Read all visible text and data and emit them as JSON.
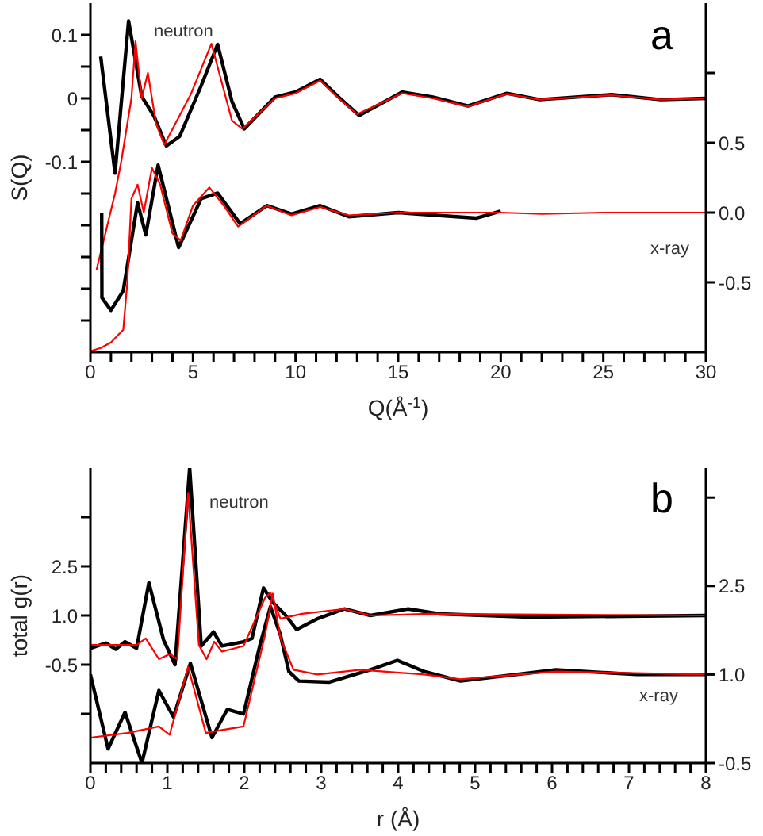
{
  "chart_data": [
    {
      "type": "line",
      "xlabel": "Q(Å$^{-1}$)",
      "ylabel": "S(Q)",
      "xlim": [
        0,
        30
      ],
      "ylim": [
        -0.4,
        0.15
      ],
      "y2lim": [
        -1,
        1.5
      ],
      "xticks": [
        0,
        {
          "value": 1,
          "label": null
        },
        {
          "value": 2,
          "label": null
        },
        {
          "value": 3,
          "label": null
        },
        {
          "value": 4,
          "label": null
        },
        5,
        {
          "value": 6,
          "label": null
        },
        {
          "value": 7,
          "label": null
        },
        {
          "value": 8,
          "label": null
        },
        {
          "value": 9,
          "label": null
        },
        10,
        {
          "value": 11,
          "label": null
        },
        {
          "value": 12,
          "label": null
        },
        {
          "value": 13,
          "label": null
        },
        {
          "value": 14,
          "label": null
        },
        15,
        {
          "value": 16,
          "label": null
        },
        {
          "value": 17,
          "label": null
        },
        {
          "value": 18,
          "label": null
        },
        {
          "value": 19,
          "label": null
        },
        20,
        {
          "value": 21,
          "label": null
        },
        {
          "value": 22,
          "label": null
        },
        {
          "value": 23,
          "label": null
        },
        {
          "value": 24,
          "label": null
        },
        25,
        {
          "value": 26,
          "label": null
        },
        {
          "value": 27,
          "label": null
        },
        {
          "value": 28,
          "label": null
        },
        {
          "value": 29,
          "label": null
        },
        30
      ],
      "yticks": [
        {
          "value": -0.35,
          "label": null
        },
        {
          "value": -0.3,
          "label": null
        },
        {
          "value": -0.25,
          "label": null
        },
        {
          "value": -0.2,
          "label": null
        },
        {
          "value": -0.15,
          "label": null
        },
        -0.1,
        {
          "value": -0.05,
          "label": null
        },
        0,
        {
          "value": 0.05,
          "label": null
        },
        0.1
      ],
      "y2ticks": [
        -0.5,
        {
          "value": 0,
          "label": "0.0"
        },
        0.5,
        {
          "value": 1,
          "label": null
        }
      ],
      "series": [
        {
          "color": "#000000",
          "x": [
            0.5,
            1.2,
            1.86,
            2.5,
            3.1,
            3.7,
            4.35,
            5.4,
            6.2,
            6.9,
            7.5,
            9.0,
            10,
            11.2,
            12.1,
            13.1,
            15.2,
            16.7,
            18.4,
            20.3,
            21.9,
            25.4,
            27.8,
            30
          ],
          "values": [
            0.066,
            -0.118,
            0.122,
            0.003,
            -0.028,
            -0.075,
            -0.06,
            0.02,
            0.085,
            -0.005,
            -0.048,
            0.002,
            0.01,
            0.03,
            0.002,
            -0.027,
            0.01,
            0.002,
            -0.012,
            0.008,
            -0.002,
            0.006,
            -0.002,
            0
          ]
        },
        {
          "color": "#ff0000",
          "x": [
            0.3,
            0.6,
            1.2,
            1.5,
            2.0,
            2.2,
            2.5,
            2.8,
            3.2,
            3.6,
            4.9,
            5.9,
            6.9,
            7.4,
            9.0,
            10,
            11.2,
            12.1,
            13.0,
            15.2,
            16.7,
            18.4,
            20.3,
            21.9,
            25.4,
            27.8,
            30
          ],
          "values": [
            -0.27,
            -0.23,
            -0.15,
            -0.1,
            0.0,
            0.09,
            0.0,
            0.04,
            -0.04,
            -0.073,
            0.007,
            0.086,
            -0.035,
            -0.048,
            0.0,
            0.008,
            0.028,
            0.0,
            -0.025,
            0.008,
            0.0,
            -0.013,
            0.007,
            -0.002,
            0.005,
            -0.002,
            0
          ]
        },
        {
          "color": "#000000",
          "axis": "y2",
          "x": [
            0.55,
            0.56,
            1.0,
            1.6,
            2.3,
            2.7,
            3.3,
            4.3,
            5.4,
            6.2,
            7.3,
            8.6,
            9.8,
            11.2,
            12.6,
            15,
            18.8,
            20
          ],
          "values": [
            0.0,
            -0.61,
            -0.7,
            -0.56,
            0.07,
            -0.16,
            0.34,
            -0.25,
            0.1,
            0.14,
            -0.08,
            0.05,
            -0.01,
            0.05,
            -0.03,
            0,
            -0.04,
            0.01
          ]
        },
        {
          "color": "#ff0000",
          "axis": "y2",
          "x": [
            0.05,
            0.5,
            1.0,
            1.6,
            1.8,
            2.0,
            2.3,
            2.6,
            3.0,
            3.4,
            4.0,
            4.4,
            5.0,
            5.8,
            6.5,
            7.2,
            8.6,
            9.8,
            11.2,
            12.6,
            15,
            20,
            22,
            25,
            30
          ],
          "values": [
            -0.99,
            -0.97,
            -0.93,
            -0.84,
            -0.5,
            0.1,
            0.2,
            0.0,
            0.32,
            0.2,
            -0.15,
            -0.2,
            0.05,
            0.18,
            0.05,
            -0.1,
            0.05,
            -0.02,
            0.04,
            -0.02,
            0,
            0,
            -0.01,
            0,
            0
          ]
        }
      ],
      "annotations": [
        "a",
        "neutron",
        "x-ray"
      ]
    },
    {
      "type": "line",
      "xlabel": "r (Å)",
      "ylabel": "total g(r)",
      "xlim": [
        0,
        8
      ],
      "ylim": [
        -3.5,
        5.5
      ],
      "y2lim": [
        -0.5,
        4.5
      ],
      "xticks": [
        0,
        {
          "value": 0.2,
          "label": null
        },
        {
          "value": 0.4,
          "label": null
        },
        {
          "value": 0.6,
          "label": null
        },
        {
          "value": 0.8,
          "label": null
        },
        1,
        {
          "value": 1.2,
          "label": null
        },
        {
          "value": 1.4,
          "label": null
        },
        {
          "value": 1.6,
          "label": null
        },
        {
          "value": 1.8,
          "label": null
        },
        2,
        {
          "value": 2.2,
          "label": null
        },
        {
          "value": 2.4,
          "label": null
        },
        {
          "value": 2.6,
          "label": null
        },
        {
          "value": 2.8,
          "label": null
        },
        3,
        {
          "value": 3.2,
          "label": null
        },
        {
          "value": 3.4,
          "label": null
        },
        {
          "value": 3.6,
          "label": null
        },
        {
          "value": 3.8,
          "label": null
        },
        4,
        {
          "value": 4.2,
          "label": null
        },
        {
          "value": 4.4,
          "label": null
        },
        {
          "value": 4.6,
          "label": null
        },
        {
          "value": 4.8,
          "label": null
        },
        5,
        {
          "value": 5.2,
          "label": null
        },
        {
          "value": 5.4,
          "label": null
        },
        {
          "value": 5.6,
          "label": null
        },
        {
          "value": 5.8,
          "label": null
        },
        6,
        {
          "value": 6.2,
          "label": null
        },
        {
          "value": 6.4,
          "label": null
        },
        {
          "value": 6.6,
          "label": null
        },
        {
          "value": 6.8,
          "label": null
        },
        7,
        {
          "value": 7.2,
          "label": null
        },
        {
          "value": 7.4,
          "label": null
        },
        {
          "value": 7.6,
          "label": null
        },
        {
          "value": 7.8,
          "label": null
        },
        8
      ],
      "yticks": [
        {
          "value": -2,
          "label": null
        },
        -0.5,
        {
          "value": 1,
          "label": "1.0"
        },
        2.5,
        {
          "value": 4,
          "label": null
        }
      ],
      "y2ticks": [
        -0.5,
        {
          "value": 1,
          "label": "1.0"
        },
        2.5,
        {
          "value": 4,
          "label": null
        }
      ],
      "series": [
        {
          "color": "#000000",
          "x": [
            0,
            0.2,
            0.33,
            0.45,
            0.6,
            0.76,
            0.95,
            1.1,
            1.29,
            1.44,
            1.6,
            1.71,
            1.99,
            2.1,
            2.25,
            2.37,
            2.54,
            2.68,
            2.95,
            3.3,
            3.64,
            4.13,
            4.54,
            5.7,
            8
          ],
          "values": [
            0.0,
            0.16,
            -0.03,
            0.2,
            0.0,
            2.0,
            0.26,
            -0.5,
            5.5,
            0.07,
            0.5,
            0.07,
            0.2,
            0.3,
            1.84,
            1.4,
            1.0,
            0.57,
            0.9,
            1.2,
            1.0,
            1.2,
            1.05,
            0.95,
            1.0
          ]
        },
        {
          "color": "#ff0000",
          "x": [
            0,
            0.6,
            0.72,
            0.89,
            1.03,
            1.13,
            1.27,
            1.41,
            1.51,
            1.61,
            1.71,
            1.99,
            2.27,
            2.34,
            2.47,
            2.75,
            3.3,
            3.64,
            4.4,
            8
          ],
          "values": [
            0.1,
            0.1,
            0.3,
            -0.33,
            -0.18,
            -0.33,
            4.74,
            0.1,
            -0.33,
            0.2,
            -0.1,
            0.07,
            1.54,
            1.7,
            0.9,
            1.05,
            1.2,
            1.0,
            1.05,
            1.0
          ]
        },
        {
          "color": "#000000",
          "axis": "y2",
          "x": [
            0,
            0.23,
            0.45,
            0.67,
            0.89,
            1.08,
            1.3,
            1.58,
            1.78,
            1.99,
            2.2,
            2.34,
            2.47,
            2.58,
            2.71,
            3.1,
            3.64,
            3.99,
            4.34,
            4.81,
            6.05,
            7.1,
            8
          ],
          "values": [
            1.0,
            -0.26,
            0.36,
            -0.5,
            0.73,
            0.28,
            1.19,
            -0.07,
            0.41,
            0.33,
            1.48,
            2.15,
            1.67,
            1.05,
            0.89,
            0.87,
            1.08,
            1.24,
            1.05,
            0.89,
            1.08,
            1.0,
            1.0
          ]
        },
        {
          "color": "#ff0000",
          "axis": "y2",
          "x": [
            0,
            0.48,
            0.89,
            1.03,
            1.27,
            1.5,
            1.71,
            1.99,
            2.27,
            2.37,
            2.47,
            2.64,
            2.95,
            3.51,
            4.34,
            4.81,
            6.05,
            8
          ],
          "values": [
            -0.07,
            0.01,
            0.12,
            -0.02,
            1.13,
            0.01,
            0.06,
            0.12,
            1.67,
            2.37,
            1.62,
            1.08,
            1.0,
            1.08,
            1.0,
            0.92,
            1.05,
            1.0
          ]
        }
      ],
      "annotations": [
        "b",
        "neutron",
        "x-ray"
      ]
    }
  ]
}
